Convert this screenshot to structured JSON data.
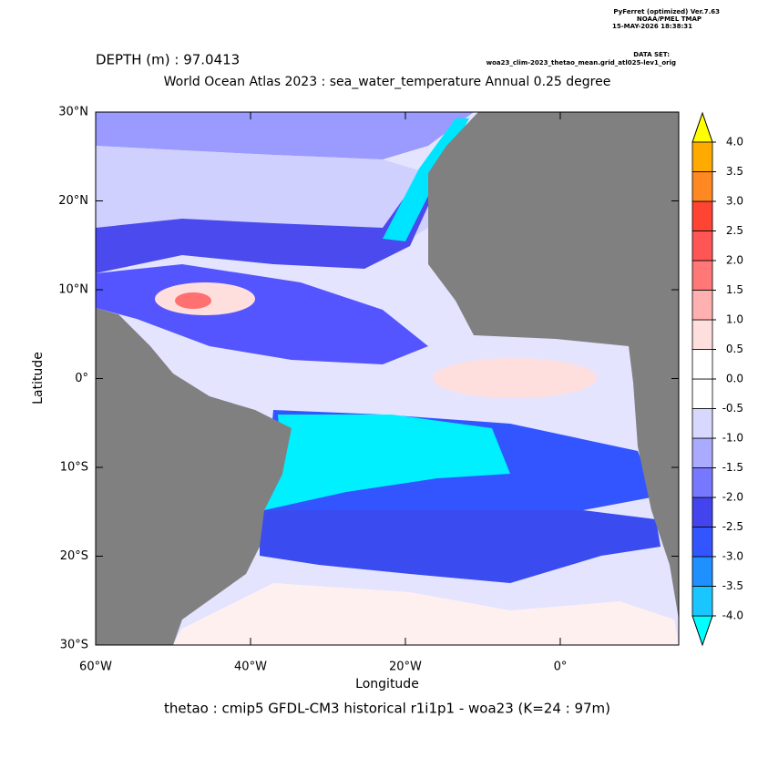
{
  "chart_data": {
    "type": "map",
    "header": [
      "PyFerret (optimized) Ver.7.63",
      "NOAA/PMEL TMAP",
      "15-MAY-2026 18:38:31"
    ],
    "dataset_label": "DATA SET:",
    "dataset": "woa23_clim-2023_thetao_mean.grid_atl025-lev1_orig",
    "depth_label": "DEPTH (m) : 97.0413",
    "title": "World Ocean Atlas 2023 : sea_water_temperature Annual  0.25 degree",
    "xlabel": "Longitude",
    "ylabel": "Latitude",
    "footer": "thetao : cmip5 GFDL-CM3 historical r1i1p1 - woa23  (K=24 : 97m)",
    "xlim": [
      -60,
      15.3
    ],
    "ylim": [
      -30,
      30
    ],
    "xticks": [
      {
        "value": -60,
        "label": "60°W"
      },
      {
        "value": -40,
        "label": "40°W"
      },
      {
        "value": -20,
        "label": "20°W"
      },
      {
        "value": 0,
        "label": "0°"
      }
    ],
    "yticks": [
      {
        "value": -30,
        "label": "30°S"
      },
      {
        "value": -20,
        "label": "20°S"
      },
      {
        "value": -10,
        "label": "10°S"
      },
      {
        "value": 0,
        "label": "0°"
      },
      {
        "value": 10,
        "label": "10°N"
      },
      {
        "value": 20,
        "label": "20°N"
      },
      {
        "value": 30,
        "label": "30°N"
      }
    ],
    "levels": [
      {
        "value": -4,
        "label": "-4.0"
      },
      {
        "value": -3.5,
        "label": "-3.5"
      },
      {
        "value": -3,
        "label": "-3.0"
      },
      {
        "value": -2.5,
        "label": "-2.5"
      },
      {
        "value": -2,
        "label": "-2.0"
      },
      {
        "value": -1.5,
        "label": "-1.5"
      },
      {
        "value": -1,
        "label": "-1.0"
      },
      {
        "value": -0.5,
        "label": "-0.5"
      },
      {
        "value": 0,
        "label": "0.0"
      },
      {
        "value": 0.5,
        "label": "0.5"
      },
      {
        "value": 1,
        "label": "1.0"
      },
      {
        "value": 1.5,
        "label": "1.5"
      },
      {
        "value": 2,
        "label": "2.0"
      },
      {
        "value": 2.5,
        "label": "2.5"
      },
      {
        "value": 3,
        "label": "3.0"
      },
      {
        "value": 3.5,
        "label": "3.5"
      },
      {
        "value": 4,
        "label": "4.0"
      }
    ],
    "colors": [
      "#00ffff",
      "#1ac6ff",
      "#1e90ff",
      "#3355ff",
      "#4444ee",
      "#7777ff",
      "#aaaaff",
      "#d8d8ff",
      "#ffffff",
      "#ffffff",
      "#ffdede",
      "#ffb0b0",
      "#ff7777",
      "#ff5555",
      "#ff4433",
      "#ff8822",
      "#ffaa00",
      "#ffff00"
    ]
  }
}
